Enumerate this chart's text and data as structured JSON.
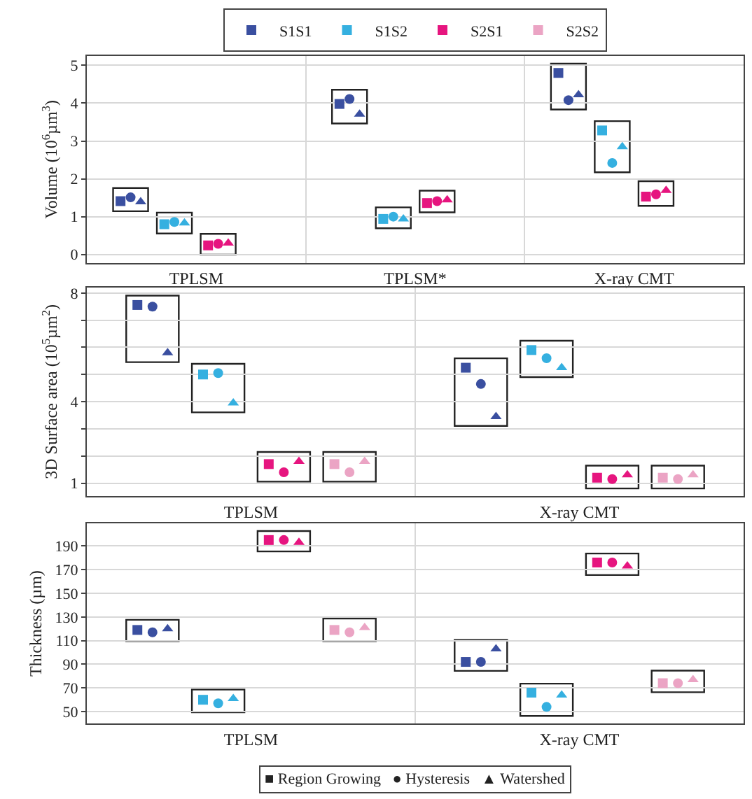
{
  "chart_data": [
    {
      "type": "scatter",
      "ylabel": "Volume (10$^{6}$µm$^{3}$)",
      "categories": [
        "TPLSM",
        "TPLSM*",
        "X-ray CMT"
      ],
      "ylim": [
        -0.22,
        5.25
      ],
      "yticks": [
        0,
        1,
        2,
        3,
        4,
        5
      ],
      "grid": true,
      "legend": "top",
      "series": [
        {
          "name": "S1S1",
          "color": "#3a4fa0",
          "marker": "square",
          "values": [
            1.41,
            3.98,
            4.8
          ]
        },
        {
          "color": "#3a4fa0",
          "marker": "circle",
          "values": [
            1.51,
            4.11,
            4.08
          ]
        },
        {
          "color": "#3a4fa0",
          "marker": "triangle",
          "values": [
            1.39,
            3.71,
            4.22
          ]
        },
        {
          "name": "S1S2",
          "color": "#35b0e0",
          "marker": "square",
          "values": [
            0.8,
            0.94,
            3.28
          ]
        },
        {
          "color": "#35b0e0",
          "marker": "circle",
          "values": [
            0.86,
            1.0,
            2.42
          ]
        },
        {
          "color": "#35b0e0",
          "marker": "triangle",
          "values": [
            0.83,
            0.94,
            2.85
          ]
        },
        {
          "name": "S2S1",
          "color": "#e6157f",
          "marker": "square",
          "values": [
            0.24,
            1.36,
            1.53
          ]
        },
        {
          "color": "#e6157f",
          "marker": "circle",
          "values": [
            0.28,
            1.41,
            1.59
          ]
        },
        {
          "color": "#e6157f",
          "marker": "triangle",
          "values": [
            0.3,
            1.44,
            1.69
          ]
        },
        {
          "name": "S2S2",
          "color": "#eba4c4",
          "marker": "square",
          "values": [
            null,
            null,
            null
          ]
        }
      ]
    },
    {
      "type": "scatter",
      "ylabel": "3D Surface area (10$^{5}$µm$^{2}$)",
      "categories": [
        "TPLSM",
        "X-ray CMT"
      ],
      "ylim": [
        0.53,
        8.2
      ],
      "yticks": [
        1,
        {
          "value": 2,
          "label": null
        },
        {
          "value": 3,
          "label": null
        },
        4,
        {
          "value": 5,
          "label": null
        },
        {
          "value": 6,
          "label": null
        },
        {
          "value": 7,
          "label": null
        },
        8
      ],
      "grid": true,
      "series": [
        {
          "color": "#3a4fa0",
          "marker": "square",
          "values": [
            7.56,
            5.25
          ]
        },
        {
          "color": "#3a4fa0",
          "marker": "circle",
          "values": [
            7.5,
            4.65
          ]
        },
        {
          "color": "#3a4fa0",
          "marker": "triangle",
          "values": [
            5.8,
            3.45
          ]
        },
        {
          "color": "#35b0e0",
          "marker": "square",
          "values": [
            5.0,
            5.9
          ]
        },
        {
          "color": "#35b0e0",
          "marker": "circle",
          "values": [
            5.05,
            5.6
          ]
        },
        {
          "color": "#35b0e0",
          "marker": "triangle",
          "values": [
            3.95,
            5.25
          ]
        },
        {
          "color": "#e6157f",
          "marker": "square",
          "values": [
            1.7,
            1.2
          ]
        },
        {
          "color": "#e6157f",
          "marker": "circle",
          "values": [
            1.4,
            1.15
          ]
        },
        {
          "color": "#e6157f",
          "marker": "triangle",
          "values": [
            1.8,
            1.3
          ]
        },
        {
          "color": "#eba4c4",
          "marker": "square",
          "values": [
            1.7,
            1.2
          ]
        },
        {
          "color": "#eba4c4",
          "marker": "circle",
          "values": [
            1.4,
            1.15
          ]
        },
        {
          "color": "#eba4c4",
          "marker": "triangle",
          "values": [
            1.8,
            1.3
          ]
        }
      ]
    },
    {
      "type": "scatter",
      "ylabel": "Thickness (µm)",
      "categories": [
        "TPLSM",
        "X-ray CMT"
      ],
      "ylim": [
        40,
        209
      ],
      "yticks": [
        50,
        70,
        90,
        110,
        130,
        150,
        170,
        190
      ],
      "grid": true,
      "annotations": [
        "■ Region Growing   ● Hysteresis   ▲ Watershed"
      ],
      "series": [
        {
          "color": "#3a4fa0",
          "marker": "square",
          "values": [
            119,
            92
          ]
        },
        {
          "color": "#3a4fa0",
          "marker": "circle",
          "values": [
            117,
            92
          ]
        },
        {
          "color": "#3a4fa0",
          "marker": "triangle",
          "values": [
            120,
            103
          ]
        },
        {
          "color": "#35b0e0",
          "marker": "square",
          "values": [
            60,
            66
          ]
        },
        {
          "color": "#35b0e0",
          "marker": "circle",
          "values": [
            57,
            54
          ]
        },
        {
          "color": "#35b0e0",
          "marker": "triangle",
          "values": [
            61,
            64
          ]
        },
        {
          "color": "#e6157f",
          "marker": "square",
          "values": [
            195,
            176
          ]
        },
        {
          "color": "#e6157f",
          "marker": "circle",
          "values": [
            195,
            176
          ]
        },
        {
          "color": "#e6157f",
          "marker": "triangle",
          "values": [
            193,
            173
          ]
        },
        {
          "color": "#eba4c4",
          "marker": "square",
          "values": [
            119,
            74
          ]
        },
        {
          "color": "#eba4c4",
          "marker": "circle",
          "values": [
            117,
            74
          ]
        },
        {
          "color": "#eba4c4",
          "marker": "triangle",
          "values": [
            121,
            77
          ]
        }
      ]
    }
  ]
}
